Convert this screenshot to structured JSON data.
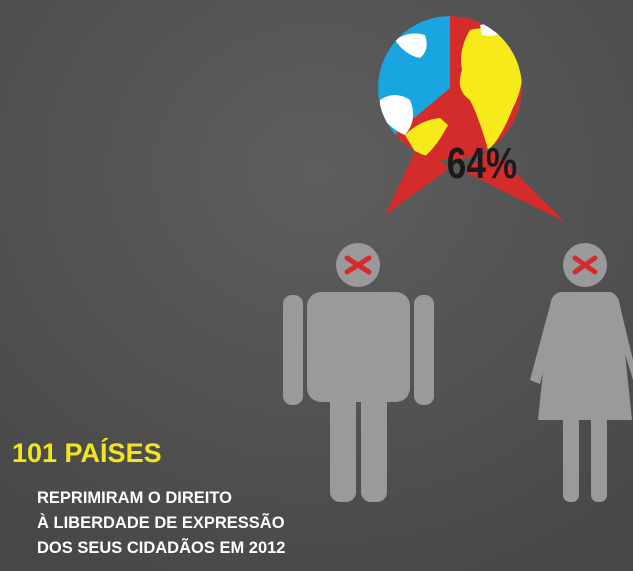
{
  "globe": {
    "label": "64%"
  },
  "headline": "101 PAÍSES",
  "subtext": [
    "REPRIMIRAM O DIREITO",
    "À LIBERDADE DE EXPRESSÃO",
    "DOS SEUS CIDADÃOS EM 2012"
  ]
}
